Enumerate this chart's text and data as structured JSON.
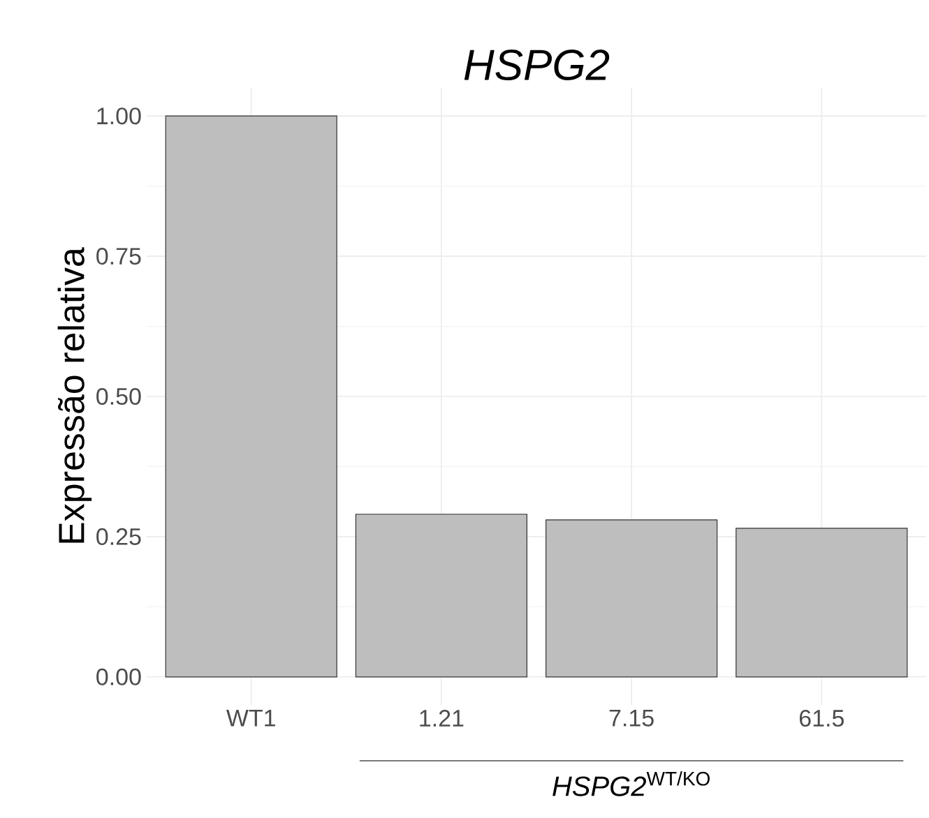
{
  "chart_data": {
    "type": "bar",
    "title": "HSPG2",
    "xlabel": "*HSPG2*$^{WT/KO}$",
    "ylabel": "Expressão relativa",
    "categories": [
      "WT1",
      "1.21",
      "7.15",
      "61.5"
    ],
    "values": [
      1.0,
      0.29,
      0.28,
      0.265
    ],
    "color": "#bebebe",
    "ylim": [
      -0.05,
      1.05
    ],
    "yticks": [
      {
        "value": 0,
        "label": "0.00"
      },
      {
        "value": 0.25,
        "label": "0.25"
      },
      {
        "value": 0.5,
        "label": "0.50"
      },
      {
        "value": 0.75,
        "label": "0.75"
      },
      {
        "value": 1,
        "label": "1.00"
      }
    ],
    "grid": true
  }
}
